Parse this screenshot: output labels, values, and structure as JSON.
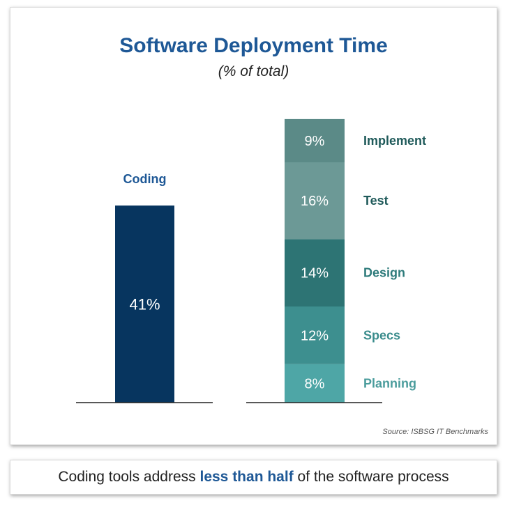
{
  "chart_data": {
    "type": "bar",
    "title": "Software Deployment Time",
    "subtitle": "(% of total)",
    "unit": "%",
    "coding": {
      "label": "Coding",
      "value": 41,
      "color": "#07355f"
    },
    "stack": [
      {
        "label": "Planning",
        "value": 8,
        "color": "#4ea6a6",
        "label_color": "#4a9c9c"
      },
      {
        "label": "Specs",
        "value": 12,
        "color": "#3d8f8f",
        "label_color": "#3a8c8c"
      },
      {
        "label": "Design",
        "value": 14,
        "color": "#2d7474",
        "label_color": "#2e7b7b"
      },
      {
        "label": "Test",
        "value": 16,
        "color": "#6c9996",
        "label_color": "#1f5a5a"
      },
      {
        "label": "Implement",
        "value": 9,
        "color": "#5b8a87",
        "label_color": "#1f5a5a"
      }
    ],
    "source": "Source: ISBSG IT Benchmarks"
  },
  "caption": {
    "before": "Coding tools address ",
    "emphasis": "less than half",
    "after": " of the software process"
  }
}
